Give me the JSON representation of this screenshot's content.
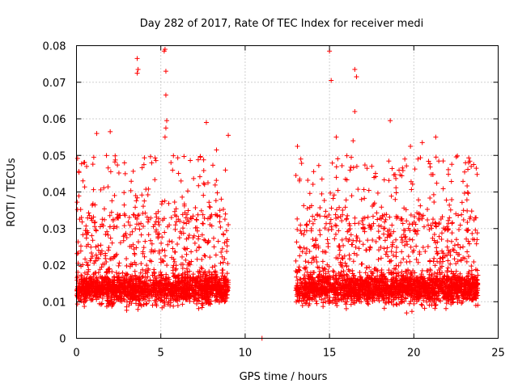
{
  "chart_data": {
    "type": "scatter",
    "title": "Day 282 of 2017, Rate Of TEC Index for receiver medi",
    "xlabel": "GPS time / hours",
    "ylabel": "ROTI / TECUs",
    "xlim": [
      0,
      25
    ],
    "ylim": [
      0,
      0.08
    ],
    "xticks": [
      0,
      5,
      10,
      15,
      20,
      25
    ],
    "yticks": [
      0,
      0.01,
      0.02,
      0.03,
      0.04,
      0.05,
      0.06,
      0.07,
      0.08
    ],
    "xtick_labels": [
      "0",
      "5",
      "10",
      "15",
      "20",
      "25"
    ],
    "ytick_labels": [
      "0",
      "0.01",
      "0.02",
      "0.03",
      "0.04",
      "0.05",
      "0.06",
      "0.07",
      "0.08"
    ],
    "grid": true,
    "marker": "+",
    "color": "#ff0000",
    "segments": [
      {
        "start": 0.0,
        "end": 9.0,
        "typical_min": 0.004,
        "typical_max": 0.05
      },
      {
        "start": 13.0,
        "end": 23.8,
        "typical_min": 0.004,
        "typical_max": 0.05
      }
    ],
    "notable_points": [
      {
        "x": 3.6,
        "y": 0.0765
      },
      {
        "x": 3.6,
        "y": 0.0725
      },
      {
        "x": 3.65,
        "y": 0.0735
      },
      {
        "x": 5.2,
        "y": 0.0785
      },
      {
        "x": 5.25,
        "y": 0.079
      },
      {
        "x": 5.3,
        "y": 0.0665
      },
      {
        "x": 5.3,
        "y": 0.073
      },
      {
        "x": 5.35,
        "y": 0.0595
      },
      {
        "x": 5.3,
        "y": 0.0575
      },
      {
        "x": 5.25,
        "y": 0.055
      },
      {
        "x": 1.2,
        "y": 0.056
      },
      {
        "x": 2.0,
        "y": 0.0565
      },
      {
        "x": 7.7,
        "y": 0.059
      },
      {
        "x": 9.0,
        "y": 0.0555
      },
      {
        "x": 0.6,
        "y": 0.047
      },
      {
        "x": 4.0,
        "y": 0.0475
      },
      {
        "x": 6.2,
        "y": 0.043
      },
      {
        "x": 8.3,
        "y": 0.0515
      },
      {
        "x": 13.1,
        "y": 0.0525
      },
      {
        "x": 13.3,
        "y": 0.049
      },
      {
        "x": 15.0,
        "y": 0.0785
      },
      {
        "x": 15.1,
        "y": 0.0705
      },
      {
        "x": 15.4,
        "y": 0.055
      },
      {
        "x": 16.5,
        "y": 0.0735
      },
      {
        "x": 16.6,
        "y": 0.0715
      },
      {
        "x": 16.5,
        "y": 0.062
      },
      {
        "x": 16.4,
        "y": 0.054
      },
      {
        "x": 18.6,
        "y": 0.0595
      },
      {
        "x": 19.8,
        "y": 0.0525
      },
      {
        "x": 20.5,
        "y": 0.0535
      },
      {
        "x": 21.3,
        "y": 0.055
      },
      {
        "x": 23.7,
        "y": 0.0465
      },
      {
        "x": 23.4,
        "y": 0.047
      },
      {
        "x": 11.0,
        "y": 0.0
      }
    ]
  }
}
